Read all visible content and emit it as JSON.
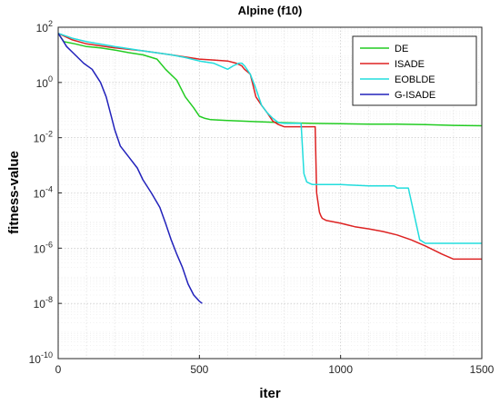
{
  "chart_data": {
    "type": "line",
    "title": "Alpine (f10)",
    "xlabel": "iter",
    "ylabel": "fitness-value",
    "xlim": [
      0,
      1500
    ],
    "ylim_log10": [
      -10,
      2
    ],
    "y_scale": "log",
    "grid": "major and minor, dotted",
    "legend_position": "top-right",
    "x_ticks": [
      "0",
      "500",
      "1000",
      "1500"
    ],
    "y_ticks": [
      {
        "base": "10",
        "exp": "2"
      },
      {
        "base": "10",
        "exp": "0"
      },
      {
        "base": "10",
        "exp": "-2"
      },
      {
        "base": "10",
        "exp": "-4"
      },
      {
        "base": "10",
        "exp": "-6"
      },
      {
        "base": "10",
        "exp": "-8"
      },
      {
        "base": "10",
        "exp": "-10"
      }
    ],
    "series": [
      {
        "name": "DE",
        "color": "#22cc22",
        "x": [
          0,
          20,
          60,
          100,
          150,
          200,
          250,
          300,
          350,
          380,
          420,
          450,
          480,
          500,
          520,
          540,
          600,
          700,
          800,
          900,
          1000,
          1100,
          1200,
          1300,
          1400,
          1500
        ],
        "y": [
          60,
          30,
          25,
          20,
          18,
          15,
          12,
          10,
          7,
          3,
          1.2,
          0.3,
          0.12,
          0.06,
          0.05,
          0.045,
          0.042,
          0.038,
          0.035,
          0.033,
          0.032,
          0.031,
          0.031,
          0.03,
          0.028,
          0.027
        ]
      },
      {
        "name": "ISADE",
        "color": "#dd2222",
        "x": [
          0,
          50,
          100,
          200,
          300,
          400,
          500,
          550,
          600,
          630,
          650,
          660,
          680,
          700,
          720,
          740,
          760,
          780,
          800,
          850,
          910,
          915,
          925,
          930,
          935,
          950,
          1000,
          1050,
          1100,
          1150,
          1200,
          1250,
          1300,
          1360,
          1400,
          1500
        ],
        "y": [
          60,
          35,
          25,
          18,
          14,
          10,
          7,
          6.5,
          6,
          5,
          4,
          3,
          2,
          0.3,
          0.15,
          0.08,
          0.04,
          0.03,
          0.025,
          0.025,
          0.025,
          0.0001,
          2e-05,
          1.5e-05,
          1.2e-05,
          1e-05,
          8e-06,
          6e-06,
          5e-06,
          4e-06,
          3e-06,
          2e-06,
          1.2e-06,
          6e-07,
          4e-07,
          4e-07
        ]
      },
      {
        "name": "EOBLDE",
        "color": "#22dddd",
        "x": [
          0,
          50,
          100,
          200,
          300,
          400,
          450,
          500,
          550,
          600,
          620,
          640,
          650,
          660,
          680,
          700,
          710,
          720,
          740,
          760,
          780,
          800,
          830,
          860,
          870,
          880,
          900,
          1000,
          1100,
          1190,
          1200,
          1240,
          1280,
          1300,
          1400,
          1500
        ],
        "y": [
          60,
          40,
          30,
          20,
          14,
          10,
          8,
          6,
          5,
          3,
          4,
          5,
          5,
          4,
          2,
          0.6,
          0.3,
          0.15,
          0.08,
          0.05,
          0.035,
          0.033,
          0.033,
          0.033,
          0.0005,
          0.00025,
          0.0002,
          0.0002,
          0.00018,
          0.00018,
          0.00015,
          0.00015,
          2e-06,
          1.5e-06,
          1.5e-06,
          1.5e-06
        ]
      },
      {
        "name": "G-ISADE",
        "color": "#2222bb",
        "x": [
          0,
          15,
          30,
          60,
          90,
          120,
          150,
          170,
          190,
          200,
          220,
          250,
          280,
          300,
          330,
          360,
          380,
          400,
          420,
          440,
          460,
          480,
          500,
          510
        ],
        "y": [
          60,
          35,
          20,
          10,
          5,
          3,
          1,
          0.3,
          0.05,
          0.02,
          0.005,
          0.002,
          0.0008,
          0.0003,
          0.0001,
          3e-05,
          8e-06,
          2e-06,
          6e-07,
          2e-07,
          5e-08,
          2e-08,
          1.2e-08,
          1e-08
        ]
      }
    ]
  }
}
